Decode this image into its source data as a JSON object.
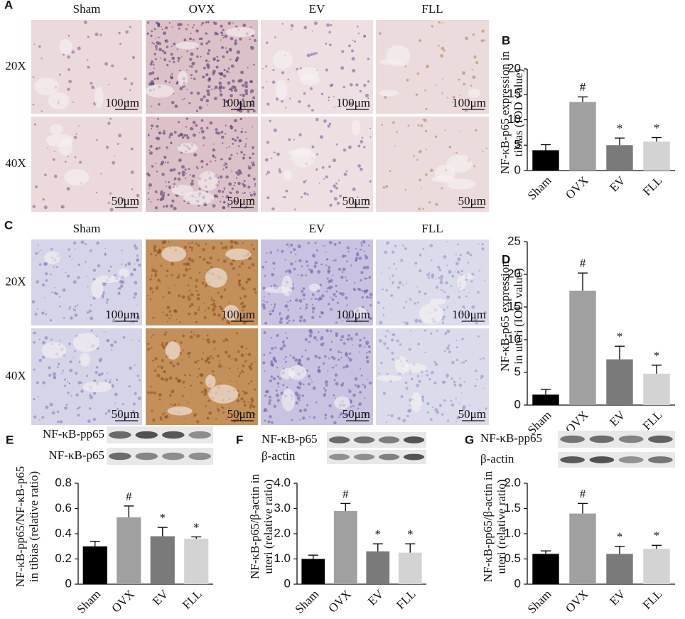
{
  "panels": [
    {
      "label": "A",
      "columns": [
        "Sham",
        "OVX",
        "EV",
        "FLL"
      ],
      "rows": [
        "20X",
        "40X"
      ],
      "scale_bars": [
        "100μm",
        "50μm"
      ]
    },
    {
      "label": "C",
      "columns": [
        "Sham",
        "OVX",
        "EV",
        "FLL"
      ],
      "rows": [
        "20X",
        "40X"
      ],
      "scale_bars": [
        "100μm",
        "50μm"
      ]
    }
  ],
  "chart_data": [
    {
      "type": "bar",
      "panel": "B",
      "ylabel": [
        "NF-κB-p65 expression in",
        "tibias (IOD value)"
      ],
      "categories": [
        "Sham",
        "OVX",
        "EV",
        "FLL"
      ],
      "values": [
        4,
        13.5,
        5,
        5.7
      ],
      "errors": [
        1.1,
        1,
        1.4,
        0.8
      ],
      "markers": [
        null,
        "#",
        "*",
        "*"
      ],
      "colors": [
        "#000000",
        "#a0a0a0",
        "#7a7a7a",
        "#d3d3d3"
      ],
      "ylim": [
        0,
        20
      ],
      "yticks": [
        0,
        5,
        10,
        15,
        20
      ]
    },
    {
      "type": "bar",
      "panel": "D",
      "ylabel": [
        "NF-κB-p65 expression",
        "in uteri (IOD value)"
      ],
      "categories": [
        "Sham",
        "OVX",
        "EV",
        "FLL"
      ],
      "values": [
        1.6,
        17.5,
        7,
        4.8
      ],
      "errors": [
        0.8,
        2.7,
        2,
        1.3
      ],
      "markers": [
        null,
        "#",
        "*",
        "*"
      ],
      "colors": [
        "#000000",
        "#a0a0a0",
        "#7a7a7a",
        "#d3d3d3"
      ],
      "ylim": [
        0,
        25
      ],
      "yticks": [
        0,
        5,
        10,
        15,
        20,
        25
      ]
    },
    {
      "type": "bar",
      "panel": "E",
      "ylabel": [
        "NF-κB-pp65/NF-κB-p65",
        "in tibias (relative ratio)"
      ],
      "blots": [
        "NF-κB-pp65",
        "NF-κB-p65"
      ],
      "categories": [
        "Sham",
        "OVX",
        "EV",
        "FLL"
      ],
      "values": [
        0.3,
        0.53,
        0.38,
        0.36
      ],
      "errors": [
        0.04,
        0.09,
        0.07,
        0.015
      ],
      "markers": [
        null,
        "#",
        "*",
        "*"
      ],
      "colors": [
        "#000000",
        "#a0a0a0",
        "#7a7a7a",
        "#d3d3d3"
      ],
      "ylim": [
        0,
        0.8
      ],
      "yticks": [
        0,
        0.2,
        0.4,
        0.6,
        0.8
      ]
    },
    {
      "type": "bar",
      "panel": "F",
      "ylabel": [
        "NF-κB-p65/β-actin in",
        "uteri (relative ratio)"
      ],
      "blots": [
        "NF-κB-p65",
        "β-actin"
      ],
      "categories": [
        "Sham",
        "OVX",
        "EV",
        "FLL"
      ],
      "values": [
        1,
        2.9,
        1.3,
        1.25
      ],
      "errors": [
        0.15,
        0.3,
        0.3,
        0.35
      ],
      "markers": [
        null,
        "#",
        "*",
        "*"
      ],
      "colors": [
        "#000000",
        "#a0a0a0",
        "#7a7a7a",
        "#d3d3d3"
      ],
      "ylim": [
        0,
        4
      ],
      "yticks": [
        0,
        {
          "value": 1,
          "label": "1.0"
        },
        {
          "value": 2,
          "label": "2.0"
        },
        {
          "value": 3,
          "label": "3.0"
        },
        {
          "value": 4,
          "label": "4.0"
        }
      ]
    },
    {
      "type": "bar",
      "panel": "G",
      "ylabel": [
        "NF-κB-pp65/β-actin in",
        "uteri (relative ratio)"
      ],
      "blots": [
        "NF-κB-pp65",
        "β-actin"
      ],
      "categories": [
        "Sham",
        "OVX",
        "EV",
        "FLL"
      ],
      "values": [
        0.6,
        1.4,
        0.6,
        0.7
      ],
      "errors": [
        0.06,
        0.2,
        0.15,
        0.07
      ],
      "markers": [
        null,
        "#",
        "*",
        "*"
      ],
      "colors": [
        "#000000",
        "#a0a0a0",
        "#7a7a7a",
        "#d3d3d3"
      ],
      "ylim": [
        0,
        2
      ],
      "yticks": [
        0,
        0.5,
        {
          "value": 1,
          "label": "1.0"
        },
        1.5,
        {
          "value": 2,
          "label": "2.0"
        }
      ]
    }
  ]
}
